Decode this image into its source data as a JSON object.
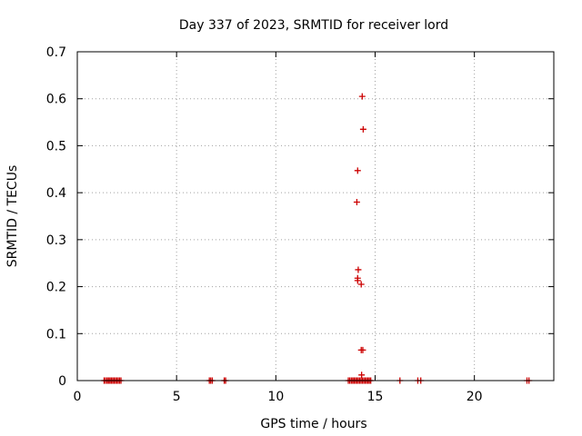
{
  "chart_data": {
    "type": "scatter",
    "title": "Day 337 of 2023, SRMTID for receiver lord",
    "xlabel": "GPS time / hours",
    "ylabel": "SRMTID / TECUs",
    "xlim": [
      0,
      24
    ],
    "ylim": [
      0,
      0.7
    ],
    "x_ticks": [
      "0",
      "5",
      "10",
      "15",
      "20"
    ],
    "x_tick_values": [
      0,
      5,
      10,
      15,
      20
    ],
    "y_ticks": [
      "0",
      "0.1",
      "0.2",
      "0.3",
      "0.4",
      "0.5",
      "0.6",
      "0.7"
    ],
    "y_tick_values": [
      0,
      0.1,
      0.2,
      0.3,
      0.4,
      0.5,
      0.6,
      0.7
    ],
    "grid": true,
    "marker": "+",
    "color": "#cc0000",
    "series": [
      {
        "x": [
          1.35,
          1.42,
          1.5,
          1.57,
          1.64,
          1.71,
          1.78,
          1.85,
          1.92,
          1.99,
          2.06,
          2.13,
          2.2,
          6.65,
          6.72,
          6.8,
          7.4,
          7.47,
          13.65,
          13.72,
          13.8,
          13.87,
          13.94,
          14.01,
          14.08,
          14.15,
          14.22,
          14.29,
          14.36,
          14.43,
          14.5,
          14.57,
          14.64,
          14.71,
          14.78,
          16.25,
          17.15,
          17.3,
          22.65,
          22.75,
          14.08,
          14.12,
          14.15,
          14.12,
          14.12,
          14.3,
          14.4,
          14.35,
          14.3,
          14.38,
          14.32
        ],
        "y": [
          0,
          0,
          0,
          0,
          0,
          0,
          0,
          0,
          0,
          0,
          0,
          0,
          0,
          0,
          0,
          0,
          0,
          0,
          0,
          0,
          0,
          0,
          0,
          0,
          0,
          0,
          0,
          0,
          0,
          0,
          0,
          0,
          0,
          0,
          0,
          0,
          0,
          0,
          0,
          0,
          0.38,
          0.447,
          0.236,
          0.218,
          0.213,
          0.205,
          0.535,
          0.605,
          0.065,
          0.065,
          0.012
        ]
      }
    ]
  }
}
